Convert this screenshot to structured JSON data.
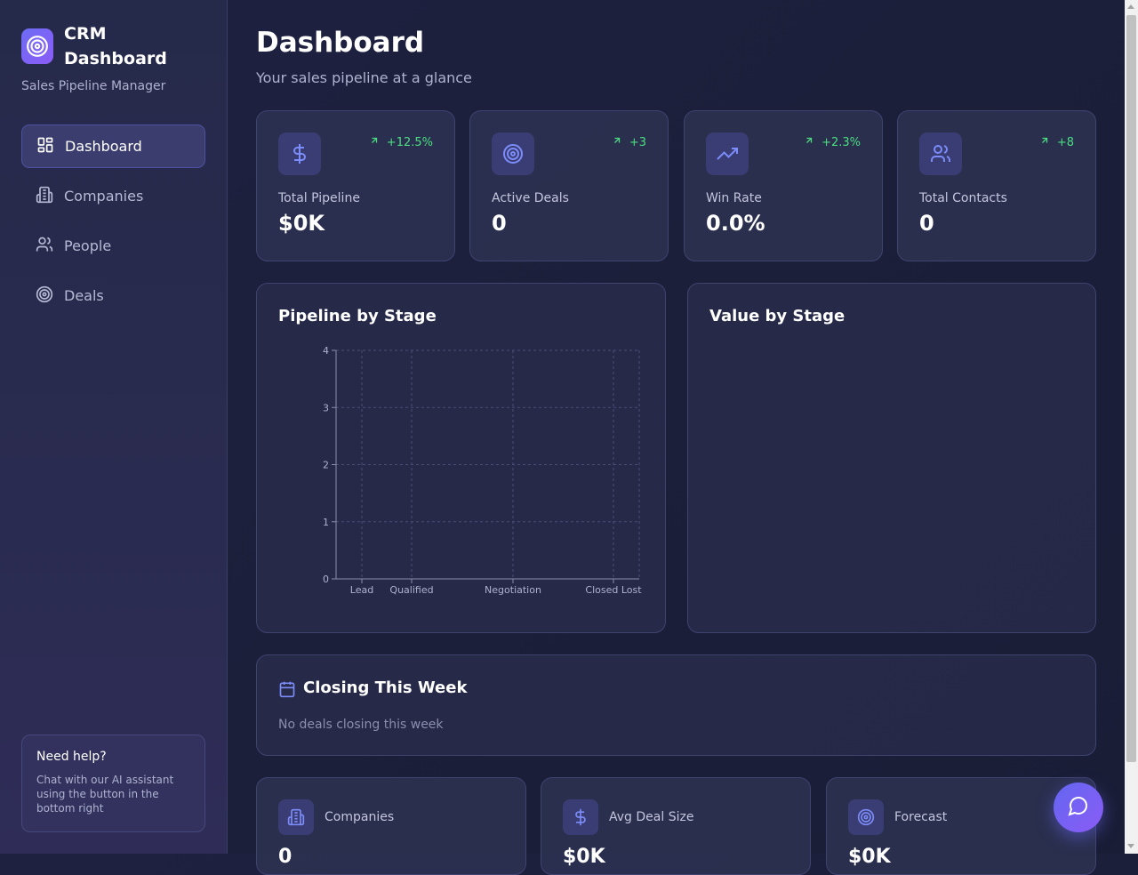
{
  "brand": {
    "title": "CRM Dashboard",
    "subtitle": "Sales Pipeline Manager",
    "logo_icon": "target-icon"
  },
  "nav": {
    "items": [
      {
        "label": "Dashboard",
        "icon": "layout-grid-icon",
        "active": true
      },
      {
        "label": "Companies",
        "icon": "building-icon",
        "active": false
      },
      {
        "label": "People",
        "icon": "users-icon",
        "active": false
      },
      {
        "label": "Deals",
        "icon": "target-icon",
        "active": false
      }
    ]
  },
  "help": {
    "title": "Need help?",
    "text": "Chat with our AI assistant using the button in the bottom right"
  },
  "page": {
    "title": "Dashboard",
    "subtitle": "Your sales pipeline at a glance"
  },
  "stats": [
    {
      "label": "Total Pipeline",
      "value": "$0K",
      "change": "+12.5%",
      "icon": "dollar-icon"
    },
    {
      "label": "Active Deals",
      "value": "0",
      "change": "+3",
      "icon": "target-icon"
    },
    {
      "label": "Win Rate",
      "value": "0.0%",
      "change": "+2.3%",
      "icon": "trending-up-icon"
    },
    {
      "label": "Total Contacts",
      "value": "0",
      "change": "+8",
      "icon": "users-icon"
    }
  ],
  "pipeline_panel": {
    "title": "Pipeline by Stage"
  },
  "value_panel": {
    "title": "Value by Stage"
  },
  "chart_data": {
    "type": "bar",
    "title": "Pipeline by Stage",
    "categories": [
      "Lead",
      "Qualified",
      "Negotiation",
      "Closed Lost"
    ],
    "values": [
      0,
      0,
      0,
      0
    ],
    "yticks": [
      "0",
      "1",
      "2",
      "3",
      "4"
    ],
    "ylim": [
      0,
      4
    ],
    "grid": true
  },
  "closing": {
    "title": "Closing This Week",
    "empty_text": "No deals closing this week",
    "icon": "calendar-icon"
  },
  "bottom_cards": [
    {
      "label": "Companies",
      "value": "0",
      "icon": "building-icon"
    },
    {
      "label": "Avg Deal Size",
      "value": "$0K",
      "icon": "dollar-icon"
    },
    {
      "label": "Forecast",
      "value": "$0K",
      "icon": "target-icon"
    }
  ],
  "chat": {
    "icon": "chat-bubble-icon"
  },
  "colors": {
    "accent": "#6366f1",
    "positive": "#4ade80",
    "icon": "#7c8cf8"
  }
}
